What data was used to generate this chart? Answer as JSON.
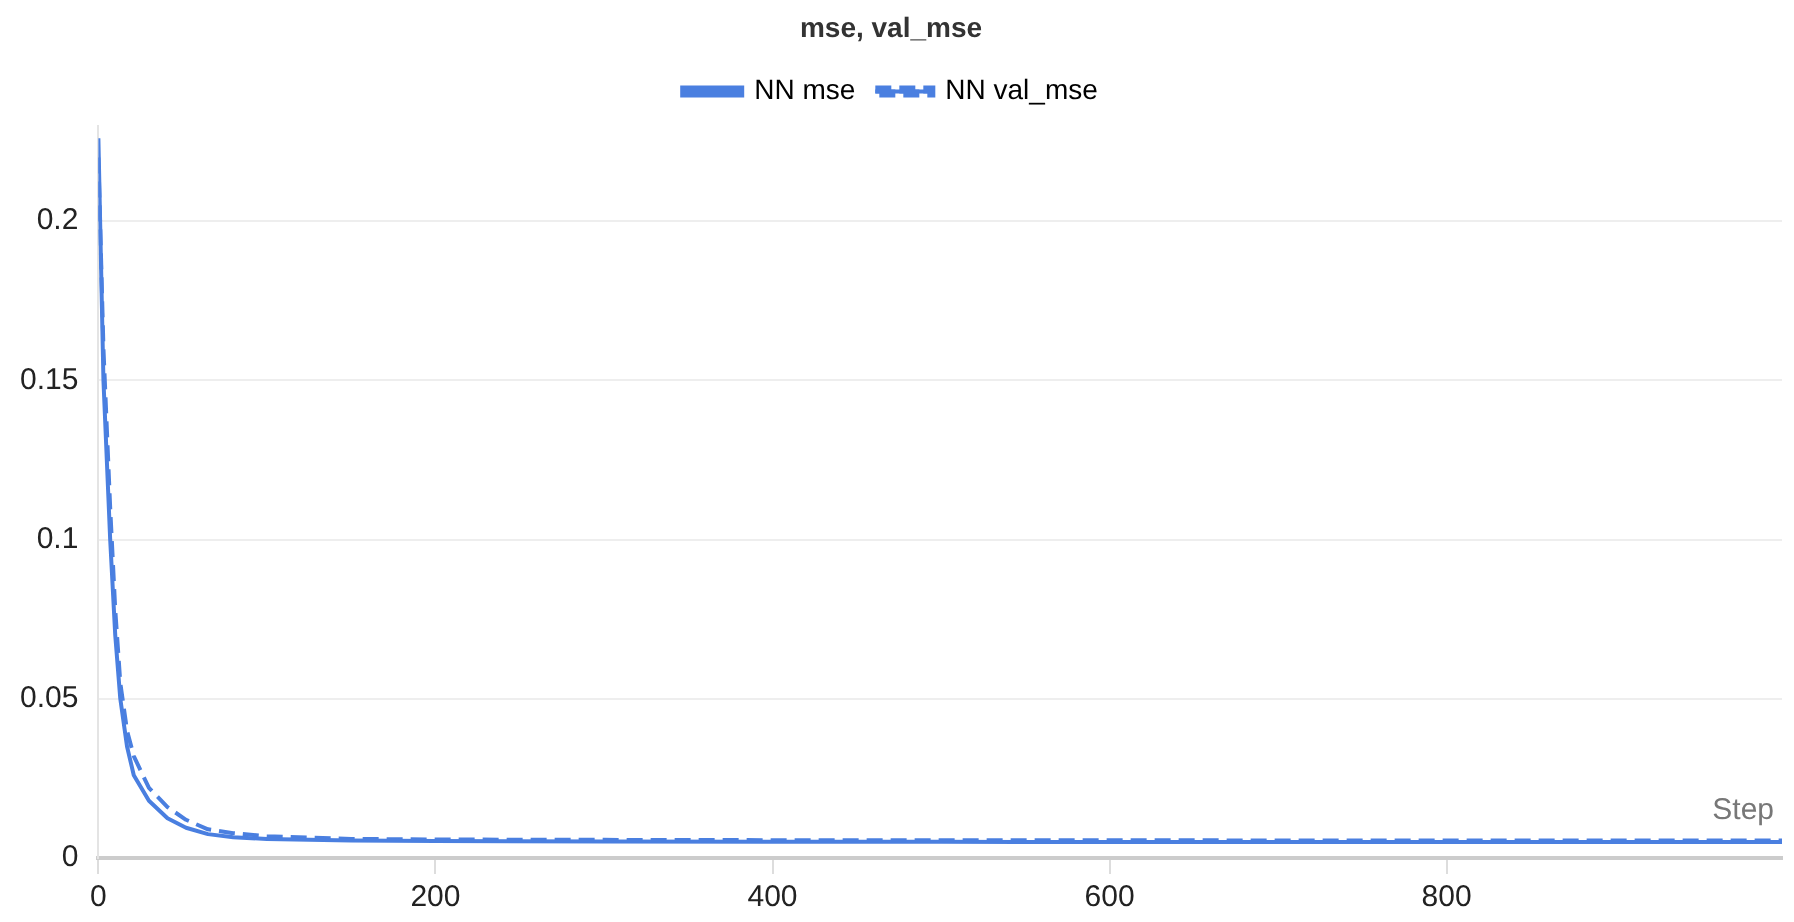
{
  "chart_data": {
    "type": "line",
    "title": "mse, val_mse",
    "legend": "top",
    "grid": "y",
    "xlim": [
      0,
      999
    ],
    "xticks": [
      0,
      200,
      400,
      600,
      800
    ],
    "ylim": [
      0,
      0.23
    ],
    "yticks": [
      0,
      0.05,
      0.1,
      0.15,
      0.2
    ],
    "annotations": [
      "Step"
    ],
    "series": [
      {
        "name": "NN mse",
        "color": "#4a7fe0",
        "line_style": "solid",
        "x": [
          0,
          3,
          7,
          10,
          13,
          17,
          21,
          30,
          41,
          52,
          65,
          80,
          100,
          150,
          200,
          300,
          400,
          500,
          600,
          700,
          800,
          900,
          999
        ],
        "values": [
          0.226,
          0.15,
          0.1,
          0.07,
          0.05,
          0.035,
          0.026,
          0.018,
          0.0125,
          0.0095,
          0.0075,
          0.0065,
          0.006,
          0.0055,
          0.0053,
          0.0052,
          0.0051,
          0.0051,
          0.005,
          0.005,
          0.005,
          0.005,
          0.005
        ]
      },
      {
        "name": "NN val_mse",
        "color": "#4a7fe0",
        "line_style": "dashed",
        "x": [
          0,
          3,
          7,
          10,
          13,
          17,
          21,
          30,
          41,
          52,
          65,
          80,
          100,
          150,
          200,
          300,
          400,
          500,
          600,
          700,
          800,
          900,
          999
        ],
        "values": [
          0.22,
          0.16,
          0.11,
          0.078,
          0.055,
          0.04,
          0.032,
          0.022,
          0.016,
          0.012,
          0.009,
          0.0078,
          0.0068,
          0.006,
          0.0058,
          0.0057,
          0.0056,
          0.0056,
          0.0056,
          0.0055,
          0.0055,
          0.0055,
          0.0055
        ]
      }
    ]
  }
}
